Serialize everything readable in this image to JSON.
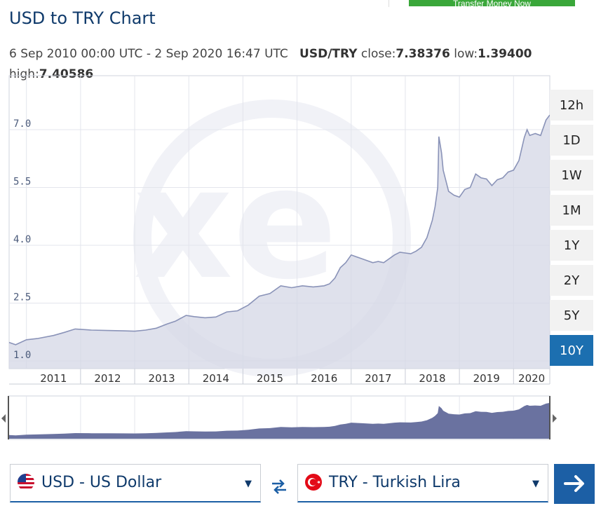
{
  "header": {
    "title": "USD to TRY Chart",
    "cta_label": "Transfer Money Now"
  },
  "info": {
    "date_range": "6 Sep 2010 00:00 UTC - 2 Sep 2020 16:47 UTC",
    "pair": "USD/TRY",
    "close_label": "close:",
    "close_value": "7.38376",
    "low_label": "low:",
    "low_value": "1.39400",
    "high_label": "high:",
    "high_value": "7.40586"
  },
  "range_buttons": [
    {
      "label": "12h",
      "active": false
    },
    {
      "label": "1D",
      "active": false
    },
    {
      "label": "1W",
      "active": false
    },
    {
      "label": "1M",
      "active": false
    },
    {
      "label": "1Y",
      "active": false
    },
    {
      "label": "2Y",
      "active": false
    },
    {
      "label": "5Y",
      "active": false
    },
    {
      "label": "10Y",
      "active": true
    }
  ],
  "colors": {
    "line": "#8a93b8",
    "area": "#d4d7e6",
    "navigator_area": "#6a72a0",
    "accent": "#1c6fb0",
    "title": "#0f3a6b"
  },
  "chart_data": {
    "type": "area",
    "x_unit": "year",
    "x": [
      2010.68,
      2010.8,
      2011.0,
      2011.2,
      2011.5,
      2011.7,
      2011.9,
      2012.2,
      2012.5,
      2012.8,
      2013.0,
      2013.2,
      2013.4,
      2013.6,
      2013.75,
      2013.95,
      2014.1,
      2014.3,
      2014.5,
      2014.7,
      2014.9,
      2015.1,
      2015.3,
      2015.5,
      2015.7,
      2015.9,
      2016.1,
      2016.3,
      2016.5,
      2016.6,
      2016.7,
      2016.8,
      2016.9,
      2017.0,
      2017.2,
      2017.4,
      2017.5,
      2017.6,
      2017.8,
      2017.9,
      2018.0,
      2018.1,
      2018.2,
      2018.3,
      2018.4,
      2018.5,
      2018.55,
      2018.6,
      2018.62,
      2018.67,
      2018.7,
      2018.8,
      2018.9,
      2019.0,
      2019.1,
      2019.2,
      2019.3,
      2019.4,
      2019.5,
      2019.6,
      2019.7,
      2019.8,
      2019.9,
      2020.0,
      2020.1,
      2020.2,
      2020.25,
      2020.3,
      2020.4,
      2020.5,
      2020.6,
      2020.67
    ],
    "y": [
      1.48,
      1.42,
      1.55,
      1.58,
      1.66,
      1.74,
      1.83,
      1.8,
      1.79,
      1.78,
      1.77,
      1.8,
      1.85,
      1.96,
      2.03,
      2.18,
      2.15,
      2.12,
      2.14,
      2.27,
      2.3,
      2.45,
      2.68,
      2.75,
      2.95,
      2.9,
      2.95,
      2.92,
      2.95,
      3.0,
      3.15,
      3.42,
      3.55,
      3.75,
      3.65,
      3.55,
      3.58,
      3.55,
      3.75,
      3.82,
      3.8,
      3.78,
      3.85,
      3.95,
      4.2,
      4.65,
      5.0,
      5.5,
      6.82,
      6.4,
      5.95,
      5.4,
      5.3,
      5.25,
      5.45,
      5.5,
      5.85,
      5.75,
      5.72,
      5.55,
      5.7,
      5.75,
      5.9,
      5.95,
      6.2,
      6.8,
      7.0,
      6.85,
      6.9,
      6.85,
      7.25,
      7.38
    ],
    "x_ticks": [
      "2011",
      "2012",
      "2013",
      "2014",
      "2015",
      "2016",
      "2017",
      "2018",
      "2019",
      "2020"
    ],
    "y_ticks": [
      "1.0",
      "2.5",
      "4.0",
      "5.5",
      "7.0"
    ],
    "xlim": [
      2010.68,
      2020.67
    ],
    "ylim": [
      0.8,
      8.4
    ],
    "grid": true,
    "watermark": "xe"
  },
  "from_currency": {
    "label": "USD - US Dollar",
    "flag": "us-flag-icon"
  },
  "to_currency": {
    "label": "TRY - Turkish Lira",
    "flag": "tr-flag-icon"
  }
}
